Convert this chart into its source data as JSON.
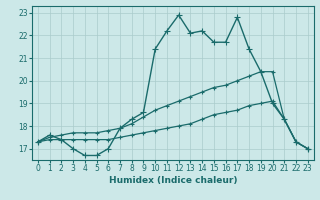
{
  "xlabel": "Humidex (Indice chaleur)",
  "ylabel": "",
  "background_color": "#cce8e8",
  "grid_color": "#aacccc",
  "line_color": "#1a6b6b",
  "xlim": [
    -0.5,
    23.5
  ],
  "ylim": [
    16.5,
    23.3
  ],
  "x_ticks": [
    0,
    1,
    2,
    3,
    4,
    5,
    6,
    7,
    8,
    9,
    10,
    11,
    12,
    13,
    14,
    15,
    16,
    17,
    18,
    19,
    20,
    21,
    22,
    23
  ],
  "y_ticks": [
    17,
    18,
    19,
    20,
    21,
    22,
    23
  ],
  "series": [
    {
      "x": [
        0,
        1,
        2,
        3,
        4,
        5,
        6,
        7,
        8,
        9,
        10,
        11,
        12,
        13,
        14,
        15,
        16,
        17,
        18,
        19,
        20,
        21,
        22,
        23
      ],
      "y": [
        17.3,
        17.6,
        17.4,
        17.0,
        16.7,
        16.7,
        17.0,
        17.9,
        18.3,
        18.6,
        21.4,
        22.2,
        22.9,
        22.1,
        22.2,
        21.7,
        21.7,
        22.8,
        21.4,
        20.4,
        19.0,
        18.3,
        17.3,
        17.0
      ],
      "marker": "+",
      "markersize": 4,
      "linewidth": 1.0
    },
    {
      "x": [
        0,
        1,
        2,
        3,
        4,
        5,
        6,
        7,
        8,
        9,
        10,
        11,
        12,
        13,
        14,
        15,
        16,
        17,
        18,
        19,
        20,
        21,
        22,
        23
      ],
      "y": [
        17.3,
        17.5,
        17.6,
        17.7,
        17.7,
        17.7,
        17.8,
        17.9,
        18.1,
        18.4,
        18.7,
        18.9,
        19.1,
        19.3,
        19.5,
        19.7,
        19.8,
        20.0,
        20.2,
        20.4,
        20.4,
        18.3,
        17.3,
        17.0
      ],
      "marker": "+",
      "markersize": 3,
      "linewidth": 0.9
    },
    {
      "x": [
        0,
        1,
        2,
        3,
        4,
        5,
        6,
        7,
        8,
        9,
        10,
        11,
        12,
        13,
        14,
        15,
        16,
        17,
        18,
        19,
        20,
        21,
        22,
        23
      ],
      "y": [
        17.3,
        17.4,
        17.4,
        17.4,
        17.4,
        17.4,
        17.4,
        17.5,
        17.6,
        17.7,
        17.8,
        17.9,
        18.0,
        18.1,
        18.3,
        18.5,
        18.6,
        18.7,
        18.9,
        19.0,
        19.1,
        18.3,
        17.3,
        17.0
      ],
      "marker": "+",
      "markersize": 3,
      "linewidth": 0.9
    }
  ]
}
